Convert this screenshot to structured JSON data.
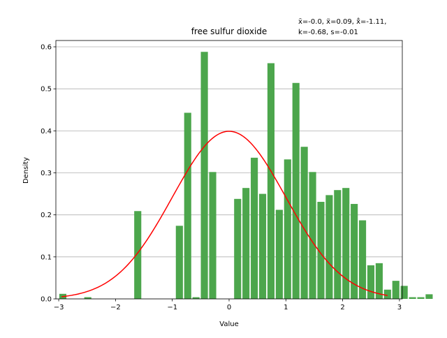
{
  "chart_data": {
    "type": "bar",
    "title": "free sulfur dioxide",
    "stats_lines": [
      "x̄=-0.0, x̃=0.09, x̊=-1.11,",
      "k=-0.68, s=-0.01"
    ],
    "xlabel": "Value",
    "ylabel": "Density",
    "xlim": [
      -3.05,
      3.05
    ],
    "ylim": [
      0,
      0.615
    ],
    "xticks": [
      -3,
      -2,
      -1,
      0,
      1,
      2,
      3
    ],
    "xtick_labels": [
      "−3",
      "−2",
      "−1",
      "0",
      "1",
      "2",
      "3"
    ],
    "yticks": [
      0.0,
      0.1,
      0.2,
      0.3,
      0.4,
      0.5,
      0.6
    ],
    "ytick_labels": [
      "0.0",
      "0.1",
      "0.2",
      "0.3",
      "0.4",
      "0.5",
      "0.6"
    ],
    "grid": "horizontal",
    "bar_color": "#4ca64c",
    "curve_color": "#ff0000",
    "bin_width": 0.1466,
    "bin_edges_start": -2.99,
    "series": [
      {
        "values": [
          0.012,
          0.0,
          0.0,
          0.004,
          0.0,
          0.0,
          0.0,
          0.0,
          0.0,
          0.209,
          0.0,
          0.0,
          0.0,
          0.0,
          0.174,
          0.443,
          0.004,
          0.588,
          0.302,
          0.0,
          0.0,
          0.238,
          0.264,
          0.336,
          0.25,
          0.561,
          0.212,
          0.332,
          0.514,
          0.362,
          0.302,
          0.231,
          0.247,
          0.259,
          0.264,
          0.226,
          0.187,
          0.08,
          0.085,
          0.022,
          0.043,
          0.031,
          0.004,
          0.004,
          0.011
        ]
      },
      {
        "type": "line",
        "function": "normal_pdf",
        "mean": 0,
        "std": 1,
        "x_range": [
          -2.95,
          2.79
        ]
      }
    ]
  }
}
